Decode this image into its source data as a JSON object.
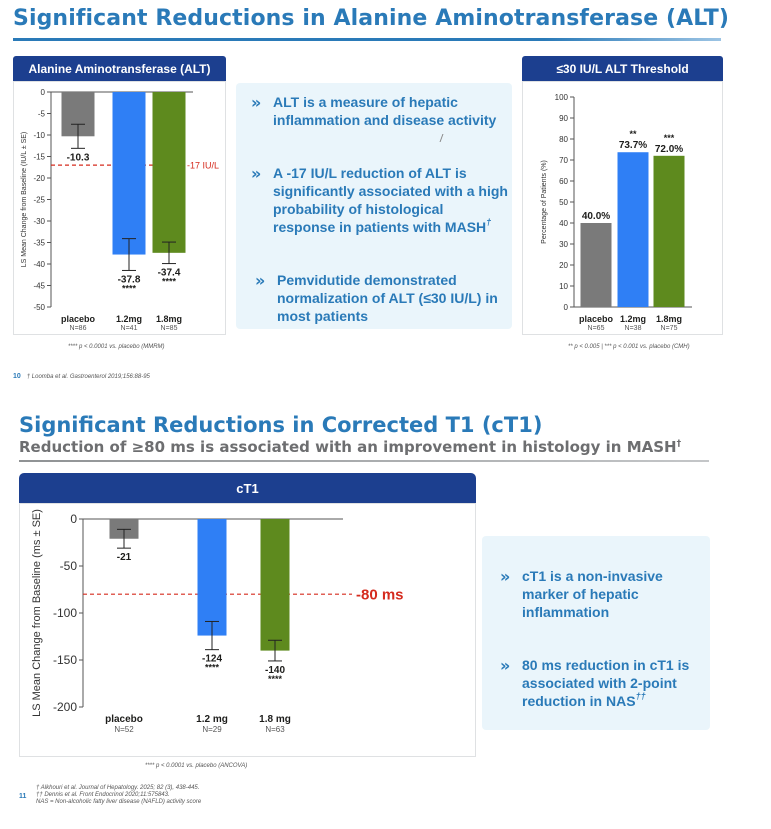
{
  "slide1": {
    "title": "Significant Reductions in Alanine Aminotransferase (ALT)",
    "page_number": "10",
    "reference": "† Loomba et al. Gastroenterol 2019;156:88-95",
    "callout": {
      "bullets": [
        {
          "text": "ALT is a measure of hepatic inflammation and disease activity",
          "sup": ""
        },
        {
          "text": "A -17 IU/L reduction of ALT is significantly associated with a high probability of histological response in patients with MASH",
          "sup": "†"
        },
        {
          "text": "Pemvidutide demonstrated normalization of ALT (≤30 IU/L) in most patients",
          "sup": ""
        }
      ]
    }
  },
  "slide2": {
    "title": "Significant Reductions in Corrected T1 (cT1)",
    "subtitle": "Reduction of ≥80 ms is associated with an improvement in histology in MASH",
    "subtitle_sup": "†",
    "page_number": "11",
    "references": [
      "† Alkhouri et al. Journal of Hepatology. 2025; 82 (3), 438-445.",
      "†† Dennis et al. Front Endocrinol 2020;11:575843.",
      "NAS = Non-alcoholic fatty liver disease (NAFLD) activity score"
    ],
    "callout": {
      "bullets": [
        {
          "text": "cT1 is a non-invasive marker of hepatic inflammation",
          "sup": ""
        },
        {
          "text": "80 ms reduction in cT1 is associated with 2-point reduction in NAS",
          "sup": "††"
        }
      ]
    }
  },
  "colors": {
    "brand_blue": "#2a7ab8",
    "header_navy": "#1c3f8f",
    "placebo_gray": "#7a7a7a",
    "dose_1_2_blue": "#2f7ff5",
    "dose_1_8_green": "#5e8a1e",
    "reference_red": "#d52b1e",
    "callout_bg": "#eaf5fb"
  },
  "icons": {
    "bullet": "double-chevron-right-icon"
  },
  "chart_data": [
    {
      "id": "alt",
      "type": "bar",
      "title": "Alanine Aminotransferase (ALT)",
      "ylabel": "LS Mean Change from Baseline (IU/L ± SE)",
      "ylim": [
        -50,
        0
      ],
      "yticks": [
        0,
        -5,
        -10,
        -15,
        -20,
        -25,
        -30,
        -35,
        -40,
        -45,
        -50
      ],
      "categories": [
        "placebo",
        "1.2mg",
        "1.8mg"
      ],
      "n_labels": [
        "N=86",
        "N=41",
        "N=85"
      ],
      "values": [
        -10.3,
        -37.8,
        -37.4
      ],
      "errors": [
        2.8,
        3.7,
        2.5
      ],
      "value_labels": [
        "-10.3",
        "-37.8",
        "-37.4"
      ],
      "significance": [
        "",
        "****",
        "****"
      ],
      "colors": [
        "#7a7a7a",
        "#2f7ff5",
        "#5e8a1e"
      ],
      "reference_line": {
        "value": -17,
        "label": "-17 IU/L"
      },
      "footnote": "**** p < 0.0001 vs. placebo (MMRM)"
    },
    {
      "id": "threshold",
      "type": "bar",
      "title": "≤30 IU/L ALT Threshold",
      "ylabel": "Percentage of Patients (%)",
      "ylim": [
        0,
        100
      ],
      "yticks": [
        0,
        10,
        20,
        30,
        40,
        50,
        60,
        70,
        80,
        90,
        100
      ],
      "categories": [
        "placebo",
        "1.2mg",
        "1.8mg"
      ],
      "n_labels": [
        "N=65",
        "N=38",
        "N=75"
      ],
      "values": [
        40.0,
        73.7,
        72.0
      ],
      "value_labels": [
        "40.0%",
        "73.7%",
        "72.0%"
      ],
      "significance": [
        "",
        "**",
        "***"
      ],
      "colors": [
        "#7a7a7a",
        "#2f7ff5",
        "#5e8a1e"
      ],
      "footnote": "** p < 0.005 | *** p < 0.001 vs. placebo (CMH)"
    },
    {
      "id": "ct1",
      "type": "bar",
      "title": "cT1",
      "ylabel": "LS Mean Change from Baseline (ms ± SE)",
      "ylim": [
        -200,
        0
      ],
      "yticks": [
        0,
        -50,
        -100,
        -150,
        -200
      ],
      "categories": [
        "placebo",
        "1.2 mg",
        "1.8 mg"
      ],
      "n_labels": [
        "N=52",
        "N=29",
        "N=63"
      ],
      "values": [
        -21,
        -124,
        -140
      ],
      "errors": [
        10,
        15,
        11
      ],
      "value_labels": [
        "-21",
        "-124",
        "-140"
      ],
      "significance": [
        "",
        "****",
        "****"
      ],
      "colors": [
        "#7a7a7a",
        "#2f7ff5",
        "#5e8a1e"
      ],
      "reference_line": {
        "value": -80,
        "label": "-80 ms"
      },
      "footnote": "**** p < 0.0001 vs. placebo (ANCOVA)"
    }
  ]
}
